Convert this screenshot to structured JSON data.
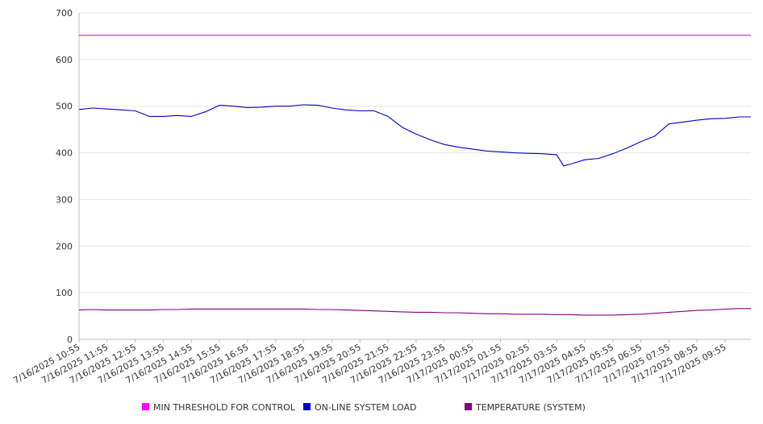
{
  "chart_data": {
    "type": "line",
    "title": "",
    "xlabel": "",
    "ylabel": "",
    "ylim": [
      0,
      700
    ],
    "yticks": [
      0,
      100,
      200,
      300,
      400,
      500,
      600,
      700
    ],
    "grid": true,
    "legend_position": "bottom",
    "x_tick_labels": [
      "7/16/2025 10:55",
      "7/16/2025 11:55",
      "7/16/2025 12:55",
      "7/16/2025 13:55",
      "7/16/2025 14:55",
      "7/16/2025 15:55",
      "7/16/2025 16:55",
      "7/16/2025 17:55",
      "7/16/2025 18:55",
      "7/16/2025 19:55",
      "7/16/2025 20:55",
      "7/16/2025 21:55",
      "7/16/2025 22:55",
      "7/16/2025 23:55",
      "7/17/2025 00:55",
      "7/17/2025 01:55",
      "7/17/2025 02:55",
      "7/17/2025 03:55",
      "7/17/2025 04:55",
      "7/17/2025 05:55",
      "7/17/2025 06:55",
      "7/17/2025 07:55",
      "7/17/2025 08:55",
      "7/17/2025 09:55"
    ],
    "x": [
      "7/16/2025 10:55",
      "7/16/2025 11:25",
      "7/16/2025 11:55",
      "7/16/2025 12:25",
      "7/16/2025 12:55",
      "7/16/2025 13:25",
      "7/16/2025 13:55",
      "7/16/2025 14:25",
      "7/16/2025 14:55",
      "7/16/2025 15:25",
      "7/16/2025 15:55",
      "7/16/2025 16:25",
      "7/16/2025 16:55",
      "7/16/2025 17:25",
      "7/16/2025 17:55",
      "7/16/2025 18:25",
      "7/16/2025 18:55",
      "7/16/2025 19:25",
      "7/16/2025 19:55",
      "7/16/2025 20:25",
      "7/16/2025 20:55",
      "7/16/2025 21:25",
      "7/16/2025 21:55",
      "7/16/2025 22:25",
      "7/16/2025 22:55",
      "7/16/2025 23:25",
      "7/16/2025 23:55",
      "7/17/2025 00:25",
      "7/17/2025 00:55",
      "7/17/2025 01:25",
      "7/17/2025 01:55",
      "7/17/2025 02:25",
      "7/17/2025 02:55",
      "7/17/2025 03:25",
      "7/17/2025 03:55",
      "7/17/2025 04:10",
      "7/17/2025 04:25",
      "7/17/2025 04:55",
      "7/17/2025 05:25",
      "7/17/2025 05:55",
      "7/17/2025 06:25",
      "7/17/2025 06:55",
      "7/17/2025 07:25",
      "7/17/2025 07:55",
      "7/17/2025 08:25",
      "7/17/2025 08:55",
      "7/17/2025 09:25",
      "7/17/2025 09:55",
      "7/17/2025 10:25",
      "7/17/2025 10:50"
    ],
    "series": [
      {
        "name": "MIN THRESHOLD FOR CONTROL",
        "color": "#ff00ff",
        "values": [
          652,
          652,
          652,
          652,
          652,
          652,
          652,
          652,
          652,
          652,
          652,
          652,
          652,
          652,
          652,
          652,
          652,
          652,
          652,
          652,
          652,
          652,
          652,
          652,
          652,
          652,
          652,
          652,
          652,
          652,
          652,
          652,
          652,
          652,
          652,
          652,
          652,
          652,
          652,
          652,
          652,
          652,
          652,
          652,
          652,
          652,
          652,
          652,
          652,
          652
        ]
      },
      {
        "name": "ON-LINE SYSTEM LOAD",
        "color": "#0000cc",
        "values": [
          493,
          496,
          494,
          492,
          490,
          478,
          478,
          480,
          478,
          488,
          502,
          500,
          497,
          498,
          500,
          500,
          503,
          502,
          496,
          492,
          490,
          490,
          478,
          455,
          440,
          428,
          418,
          412,
          408,
          404,
          402,
          400,
          399,
          398,
          396,
          372,
          376,
          385,
          388,
          398,
          410,
          424,
          436,
          462,
          466,
          470,
          473,
          474,
          477,
          477
        ]
      },
      {
        "name": "TEMPERATURE (SYSTEM)",
        "color": "#800080",
        "values": [
          63,
          64,
          63,
          63,
          63,
          63,
          64,
          64,
          65,
          65,
          65,
          65,
          65,
          65,
          65,
          65,
          65,
          64,
          64,
          63,
          62,
          61,
          60,
          59,
          58,
          58,
          57,
          57,
          56,
          55,
          55,
          54,
          54,
          54,
          53,
          53,
          53,
          52,
          52,
          52,
          53,
          54,
          56,
          58,
          60,
          62,
          63,
          65,
          66,
          66
        ]
      }
    ]
  }
}
